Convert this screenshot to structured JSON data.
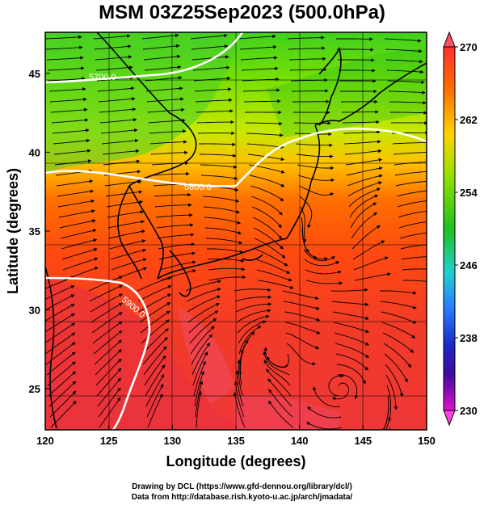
{
  "title": "MSM 03Z25Sep2023 (500.0hPa)",
  "axes": {
    "xlabel": "Longitude (degrees)",
    "ylabel": "Latitude  (degrees)",
    "xticks": [
      120,
      125,
      130,
      135,
      140,
      145,
      150
    ],
    "yticks": [
      25,
      30,
      35,
      40,
      45
    ],
    "xlim": [
      120,
      150
    ],
    "ylim": [
      22.4,
      47.6
    ]
  },
  "colorbar": {
    "min": 230,
    "max": 270,
    "labels": [
      270,
      262,
      254,
      246,
      238,
      230
    ],
    "colors": [
      "#ff5a8c",
      "#ff2020",
      "#ff6a00",
      "#ffd400",
      "#8ae000",
      "#22c21a",
      "#22c8e0",
      "#2a7aff",
      "#1a28c8",
      "#2a0a9e",
      "#c80ad0",
      "#ff50d0"
    ]
  },
  "contours": [
    {
      "label": "5700.0"
    },
    {
      "label": "5800.0"
    },
    {
      "label": "5900.0"
    }
  ],
  "credits": {
    "line1": "Drawing by DCL (https://www.gfd-dennou.org/library/dcl/)",
    "line2": "Data from http://database.rish.kyoto-u.ac.jp/arch/jmadata/"
  }
}
